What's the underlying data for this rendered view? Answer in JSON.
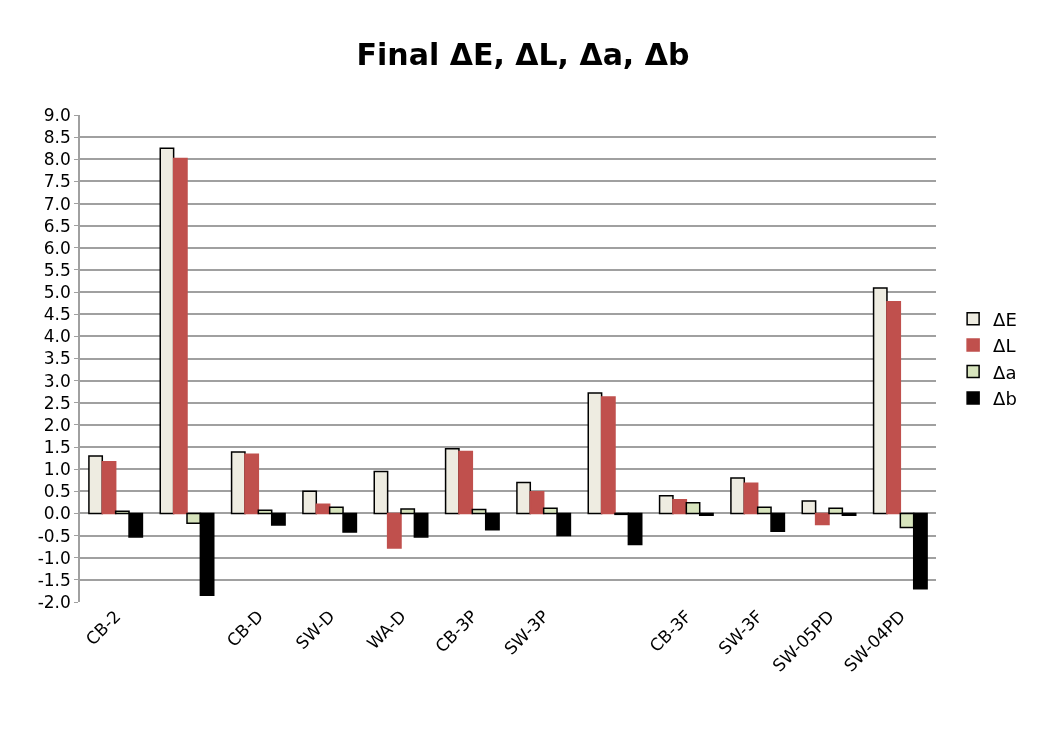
{
  "chart_data": {
    "type": "bar",
    "title": "Final ΔE, ΔL, Δa, Δb",
    "categories": [
      "CB-2",
      null,
      "CB-D",
      "SW-D",
      "WA-D",
      "CB-3P",
      "SW-3P",
      null,
      "CB-3F",
      "SW-3F",
      "SW-05PD",
      "SW-04PD"
    ],
    "series": [
      {
        "name": "ΔE",
        "color": "#eeece1",
        "values": [
          1.3,
          8.25,
          1.39,
          0.5,
          0.95,
          1.46,
          0.7,
          2.72,
          0.4,
          0.8,
          0.28,
          5.09
        ]
      },
      {
        "name": "ΔL",
        "color": "#c0504d",
        "values": [
          1.17,
          8.02,
          1.34,
          0.21,
          -0.78,
          1.4,
          0.49,
          2.63,
          0.31,
          0.68,
          -0.25,
          4.78
        ]
      },
      {
        "name": "Δa",
        "color": "#d7e4bd",
        "values": [
          0.05,
          -0.22,
          0.07,
          0.14,
          0.1,
          0.09,
          0.12,
          -0.02,
          0.24,
          0.14,
          0.12,
          -0.32
        ]
      },
      {
        "name": "Δb",
        "color": "#000000",
        "values": [
          -0.53,
          -1.85,
          -0.26,
          -0.42,
          -0.53,
          -0.37,
          -0.5,
          -0.7,
          -0.04,
          -0.4,
          -0.04,
          -1.7
        ]
      }
    ],
    "ylim": [
      -2.0,
      9.0
    ],
    "yticks": [
      {
        "value": -2,
        "label": "-2.0"
      },
      {
        "value": -1.5,
        "label": "-1.5"
      },
      {
        "value": -1,
        "label": "-1.0"
      },
      {
        "value": -0.5,
        "label": "-0.5"
      },
      {
        "value": 0,
        "label": "0.0"
      },
      {
        "value": 0.5,
        "label": "0.5"
      },
      {
        "value": 1,
        "label": "1.0"
      },
      {
        "value": 1.5,
        "label": "1.5"
      },
      {
        "value": 2,
        "label": "2.0"
      },
      {
        "value": 2.5,
        "label": "2.5"
      },
      {
        "value": 3,
        "label": "3.0"
      },
      {
        "value": 3.5,
        "label": "3.5"
      },
      {
        "value": 4,
        "label": "4.0"
      },
      {
        "value": 4.5,
        "label": "4.5"
      },
      {
        "value": 5,
        "label": "5.0"
      },
      {
        "value": 5.5,
        "label": "5.5"
      },
      {
        "value": 6,
        "label": "6.0"
      },
      {
        "value": 6.5,
        "label": "6.5"
      },
      {
        "value": 7,
        "label": "7.0"
      },
      {
        "value": 7.5,
        "label": "7.5"
      },
      {
        "value": 8,
        "label": "8.0"
      },
      {
        "value": 8.5,
        "label": "8.5"
      },
      {
        "value": 9,
        "label": "9.0"
      }
    ],
    "grid": "y",
    "legend": "right"
  }
}
